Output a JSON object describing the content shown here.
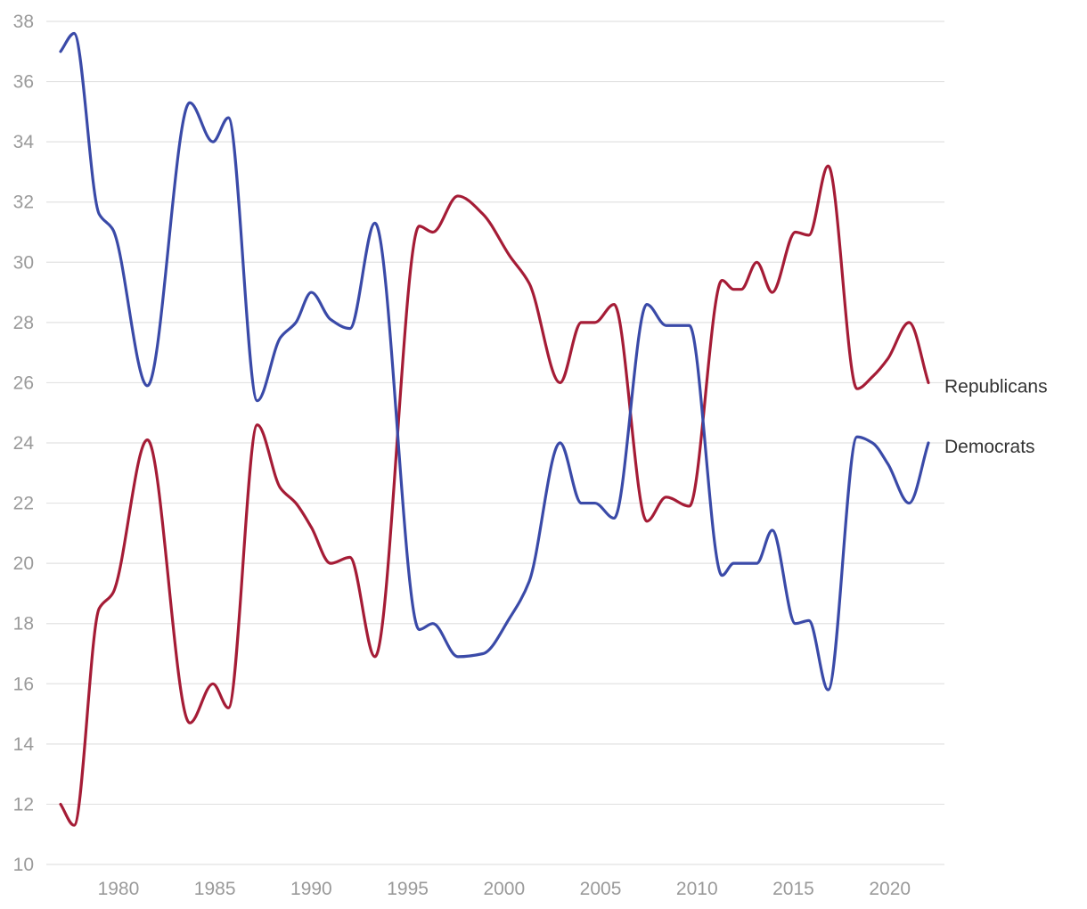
{
  "chart_data": {
    "type": "line",
    "title": "",
    "xlabel": "",
    "ylabel": "",
    "xlim": [
      1976.5,
      2022.5
    ],
    "ylim": [
      10,
      38
    ],
    "y_ticks": [
      10,
      12,
      14,
      16,
      18,
      20,
      22,
      24,
      26,
      28,
      30,
      32,
      34,
      36,
      38
    ],
    "x_ticks": [
      1980,
      1985,
      1990,
      1995,
      2000,
      2005,
      2010,
      2015,
      2020
    ],
    "grid": true,
    "legend": "end-of-line labels",
    "series": [
      {
        "name": "Republicans",
        "color": "#a51c36",
        "x": [
          1977,
          1977.7,
          1979,
          1979.7,
          1981.5,
          1983.7,
          1984.9,
          1985.7,
          1987.2,
          1988.4,
          1989.2,
          1990,
          1991,
          1992,
          1993.3,
          1995.6,
          1996.3,
          1997.6,
          1998.9,
          2000.3,
          2001.3,
          2002.9,
          2004,
          2004.7,
          2005.7,
          2007.4,
          2008.4,
          2009.6,
          2011.3,
          2011.9,
          2012.3,
          2013.1,
          2013.9,
          2015.1,
          2015.8,
          2016.8,
          2018.3,
          2019.1,
          2019.9,
          2021,
          2022
        ],
        "values": [
          12,
          11.3,
          18.5,
          19,
          24.1,
          14.7,
          16,
          15.2,
          24.6,
          22.5,
          22,
          21.2,
          20,
          20.2,
          16.9,
          31.2,
          31,
          32.2,
          31.6,
          30.2,
          29.3,
          26,
          28,
          28,
          28.6,
          21.4,
          22.2,
          21.9,
          29.4,
          29.1,
          29.1,
          30,
          29,
          31,
          30.9,
          33.2,
          25.8,
          26.2,
          26.8,
          28,
          26
        ]
      },
      {
        "name": "Democrats",
        "color": "#3a4aa8",
        "x": [
          1977,
          1977.7,
          1979,
          1979.7,
          1981.5,
          1983.7,
          1984.9,
          1985.7,
          1987.2,
          1988.4,
          1989.2,
          1990,
          1991,
          1992,
          1993.3,
          1995.6,
          1996.3,
          1997.6,
          1998.9,
          2000.3,
          2001.3,
          2002.9,
          2004,
          2004.7,
          2005.7,
          2007.4,
          2008.4,
          2009.6,
          2011.3,
          2011.9,
          2012.3,
          2013.1,
          2013.9,
          2015.1,
          2015.8,
          2016.8,
          2018.3,
          2019.1,
          2019.9,
          2021,
          2022
        ],
        "values": [
          37,
          37.6,
          31.6,
          31.1,
          25.9,
          35.3,
          34,
          34.8,
          25.4,
          27.5,
          28,
          29,
          28.1,
          27.8,
          31.3,
          17.8,
          18,
          16.9,
          17,
          18.2,
          19.4,
          24,
          22,
          22,
          21.5,
          28.6,
          27.9,
          27.9,
          19.6,
          20,
          20,
          20,
          21.1,
          18,
          18.1,
          15.8,
          24.2,
          24,
          23.3,
          22,
          24
        ]
      }
    ]
  }
}
